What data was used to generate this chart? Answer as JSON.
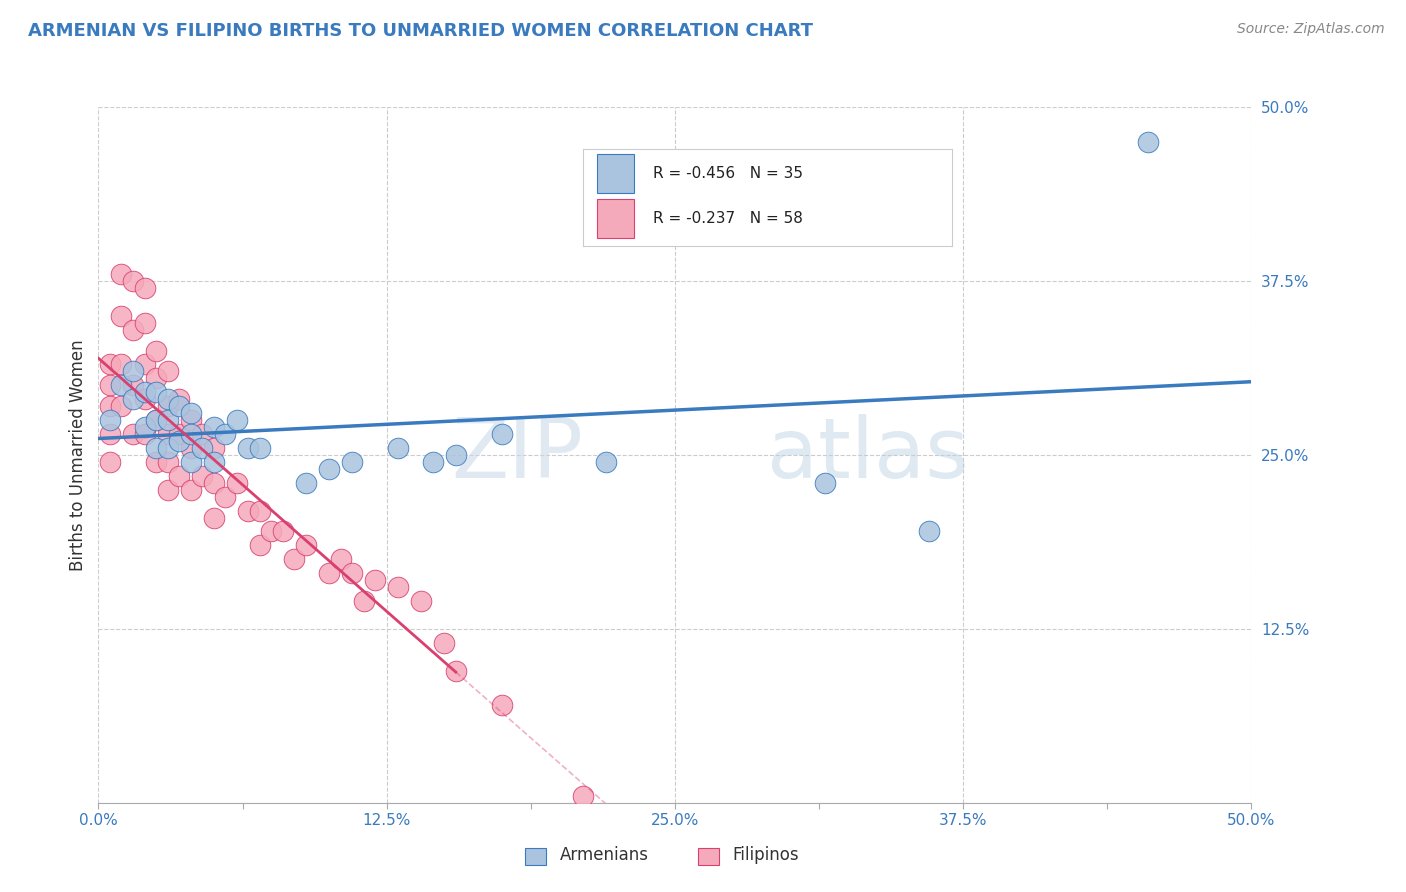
{
  "title": "ARMENIAN VS FILIPINO BIRTHS TO UNMARRIED WOMEN CORRELATION CHART",
  "source": "Source: ZipAtlas.com",
  "ylabel": "Births to Unmarried Women",
  "xlim": [
    0.0,
    0.5
  ],
  "ylim": [
    0.0,
    0.5
  ],
  "xtick_labels": [
    "0.0%",
    "",
    "12.5%",
    "",
    "25.0%",
    "",
    "37.5%",
    "",
    "50.0%"
  ],
  "xtick_vals": [
    0.0,
    0.0625,
    0.125,
    0.1875,
    0.25,
    0.3125,
    0.375,
    0.4375,
    0.5
  ],
  "ytick_labels": [
    "50.0%",
    "37.5%",
    "25.0%",
    "12.5%",
    ""
  ],
  "ytick_vals": [
    0.5,
    0.375,
    0.25,
    0.125,
    0.0
  ],
  "grid_tick_vals": [
    0.0,
    0.125,
    0.25,
    0.375,
    0.5
  ],
  "background_color": "#ffffff",
  "grid_color": "#cccccc",
  "armenian_color": "#aac4df",
  "filipino_color": "#f5aabb",
  "armenian_line_color": "#3a7abf",
  "filipino_line_color": "#d94070",
  "watermark_color": "#d0dde8",
  "legend_armenian_R": "-0.456",
  "legend_armenian_N": "35",
  "legend_filipino_R": "-0.237",
  "legend_filipino_N": "58",
  "armenian_x": [
    0.005,
    0.01,
    0.015,
    0.015,
    0.02,
    0.02,
    0.025,
    0.025,
    0.025,
    0.03,
    0.03,
    0.03,
    0.035,
    0.035,
    0.04,
    0.04,
    0.04,
    0.045,
    0.05,
    0.05,
    0.055,
    0.06,
    0.065,
    0.07,
    0.09,
    0.1,
    0.11,
    0.13,
    0.145,
    0.155,
    0.175,
    0.22,
    0.315,
    0.36,
    0.455
  ],
  "armenian_y": [
    0.275,
    0.3,
    0.31,
    0.29,
    0.295,
    0.27,
    0.295,
    0.275,
    0.255,
    0.29,
    0.275,
    0.255,
    0.285,
    0.26,
    0.28,
    0.265,
    0.245,
    0.255,
    0.27,
    0.245,
    0.265,
    0.275,
    0.255,
    0.255,
    0.23,
    0.24,
    0.245,
    0.255,
    0.245,
    0.25,
    0.265,
    0.245,
    0.23,
    0.195,
    0.475
  ],
  "filipino_x": [
    0.005,
    0.005,
    0.005,
    0.005,
    0.005,
    0.01,
    0.01,
    0.01,
    0.01,
    0.015,
    0.015,
    0.015,
    0.015,
    0.02,
    0.02,
    0.02,
    0.02,
    0.02,
    0.025,
    0.025,
    0.025,
    0.025,
    0.03,
    0.03,
    0.03,
    0.03,
    0.03,
    0.035,
    0.035,
    0.035,
    0.04,
    0.04,
    0.04,
    0.045,
    0.045,
    0.05,
    0.05,
    0.05,
    0.055,
    0.06,
    0.065,
    0.07,
    0.07,
    0.075,
    0.08,
    0.085,
    0.09,
    0.1,
    0.105,
    0.11,
    0.115,
    0.12,
    0.13,
    0.14,
    0.15,
    0.155,
    0.175,
    0.21
  ],
  "filipino_y": [
    0.315,
    0.3,
    0.285,
    0.265,
    0.245,
    0.38,
    0.35,
    0.315,
    0.285,
    0.375,
    0.34,
    0.3,
    0.265,
    0.37,
    0.345,
    0.315,
    0.29,
    0.265,
    0.325,
    0.305,
    0.275,
    0.245,
    0.31,
    0.285,
    0.265,
    0.245,
    0.225,
    0.29,
    0.265,
    0.235,
    0.275,
    0.255,
    0.225,
    0.265,
    0.235,
    0.255,
    0.23,
    0.205,
    0.22,
    0.23,
    0.21,
    0.21,
    0.185,
    0.195,
    0.195,
    0.175,
    0.185,
    0.165,
    0.175,
    0.165,
    0.145,
    0.16,
    0.155,
    0.145,
    0.115,
    0.095,
    0.07,
    0.005
  ]
}
